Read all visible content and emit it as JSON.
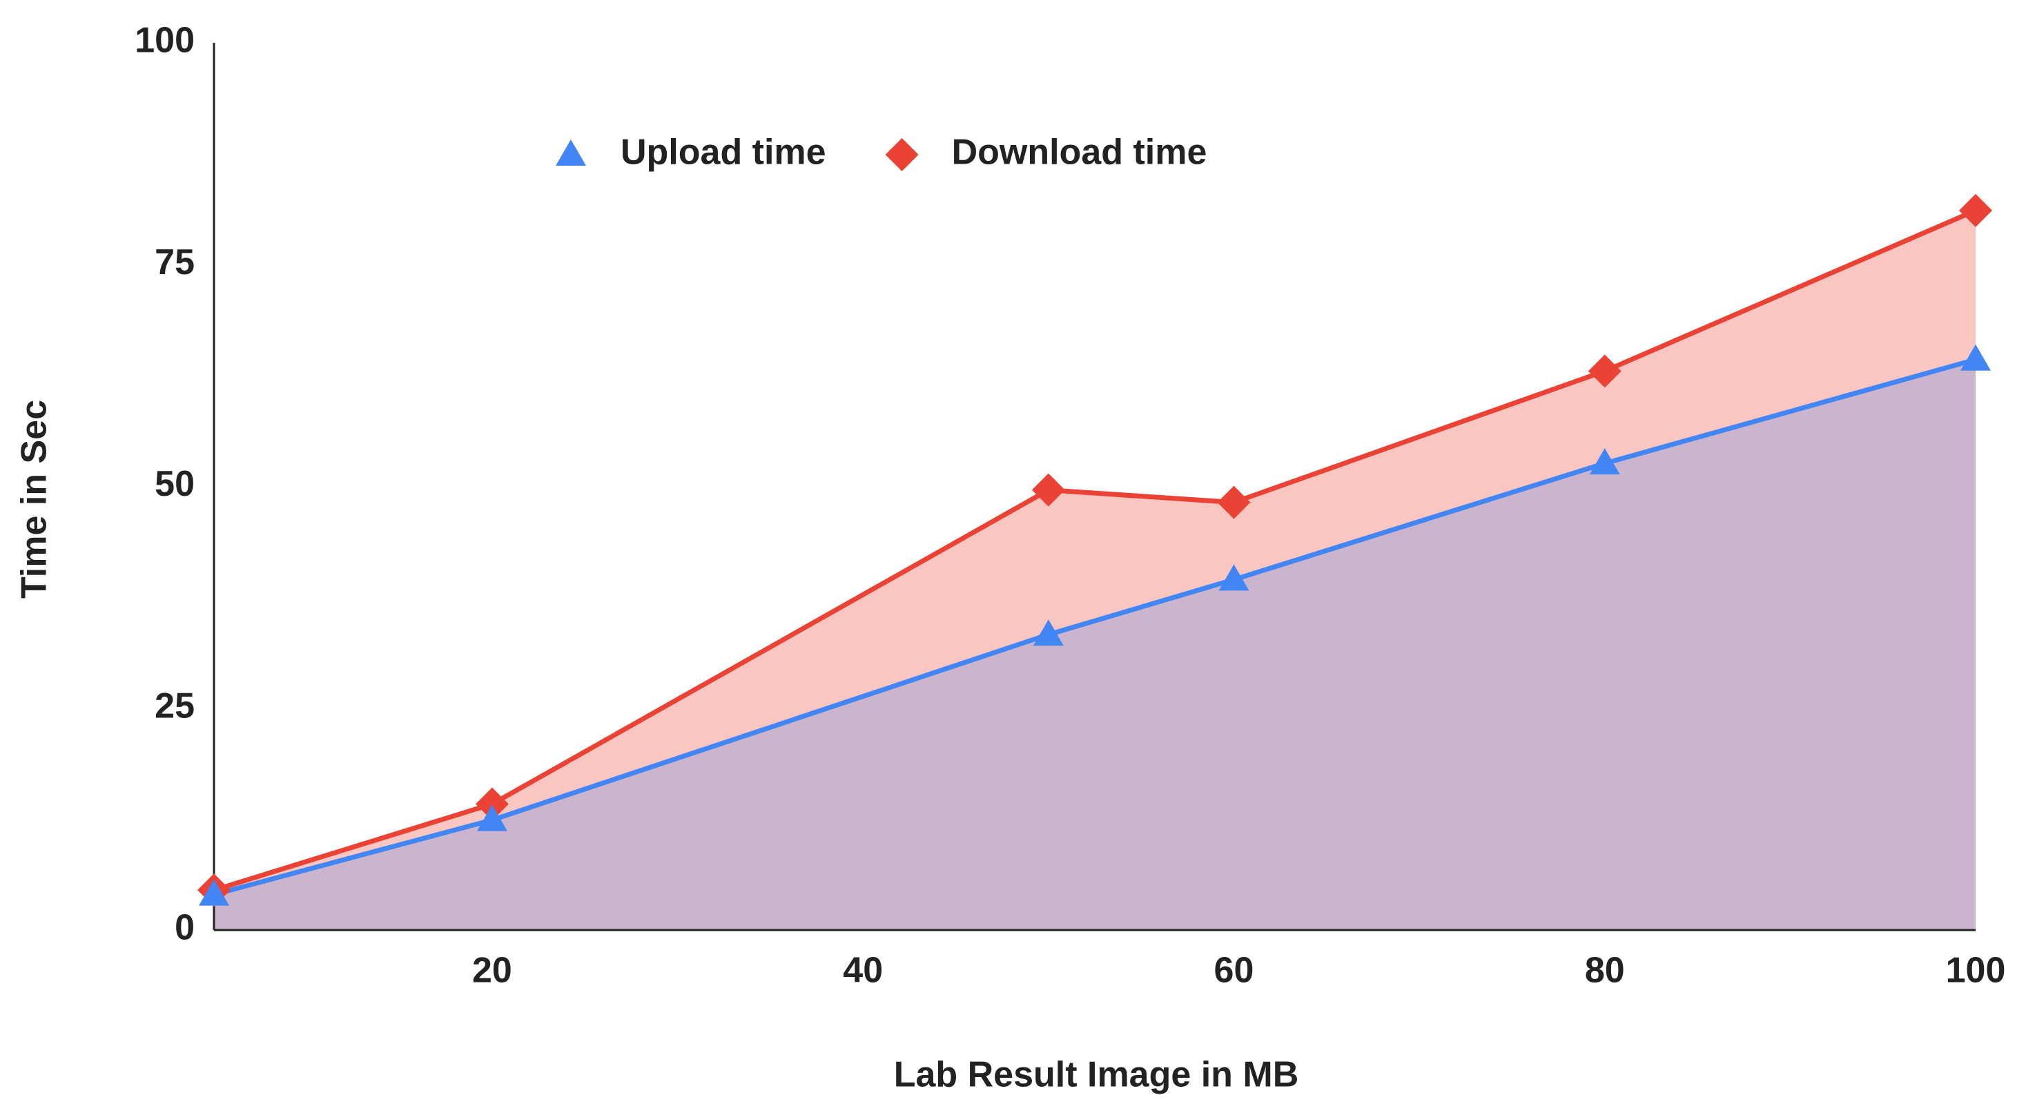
{
  "chart_data": {
    "type": "area",
    "x_label": "Lab Result Image in MB",
    "y_label": "Time in Sec",
    "x": [
      5,
      20,
      50,
      60,
      80,
      100
    ],
    "series": [
      {
        "name": "Upload time",
        "color": "#4285f4",
        "marker": "triangle",
        "values": [
          4,
          12.4,
          33.3,
          39.5,
          52.6,
          64.3
        ]
      },
      {
        "name": "Download time",
        "color": "#ea4335",
        "marker": "diamond",
        "values": [
          4.5,
          14.2,
          49.6,
          48.2,
          63,
          81.1
        ]
      }
    ],
    "xlim": [
      5,
      100
    ],
    "xticks": [
      20,
      40,
      60,
      80,
      100
    ],
    "ylim": [
      0,
      100
    ],
    "yticks": [
      0,
      25,
      50,
      75,
      100
    ],
    "grid": false,
    "legend": "top"
  }
}
